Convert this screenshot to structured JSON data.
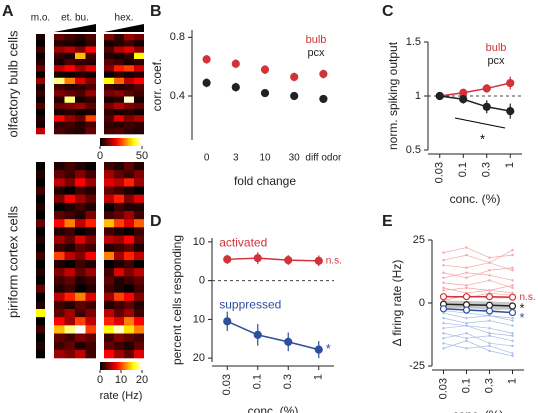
{
  "chart_data": [
    {
      "type": "heatmap",
      "panel": "A",
      "ylabel": "olfactory bulb cells",
      "ylabel_color": "#d0343a",
      "column_groups": [
        "m.o.",
        "et. bu.",
        "hex."
      ],
      "clim": [
        0,
        50
      ],
      "colorbar_ticks": [
        0,
        50
      ],
      "rows": [
        [
          2,
          8,
          5,
          3,
          6,
          10,
          4,
          12,
          9
        ],
        [
          0,
          3,
          2,
          1,
          4,
          2,
          3,
          5,
          2
        ],
        [
          5,
          12,
          15,
          10,
          20,
          6,
          14,
          18,
          11
        ],
        [
          1,
          4,
          2,
          35,
          5,
          3,
          2,
          4,
          40
        ],
        [
          3,
          2,
          6,
          4,
          3,
          7,
          5,
          2,
          4
        ],
        [
          8,
          15,
          20,
          12,
          18,
          10,
          22,
          25,
          16
        ],
        [
          0,
          2,
          1,
          3,
          2,
          1,
          4,
          2,
          3
        ],
        [
          12,
          45,
          30,
          18,
          10,
          40,
          28,
          15,
          20
        ],
        [
          2,
          5,
          3,
          4,
          6,
          5,
          3,
          4,
          7
        ],
        [
          4,
          10,
          8,
          6,
          12,
          9,
          11,
          7,
          5
        ],
        [
          1,
          3,
          45,
          2,
          4,
          2,
          3,
          48,
          2
        ],
        [
          6,
          8,
          10,
          12,
          7,
          9,
          14,
          10,
          8
        ],
        [
          0,
          2,
          3,
          1,
          2,
          4,
          2,
          3,
          1
        ],
        [
          3,
          20,
          12,
          8,
          25,
          6,
          18,
          10,
          14
        ],
        [
          2,
          4,
          5,
          3,
          6,
          4,
          3,
          5,
          4
        ],
        [
          15,
          6,
          4,
          3,
          8,
          5,
          6,
          4,
          3
        ]
      ]
    },
    {
      "type": "heatmap",
      "ylabel": "piriform cortex cells",
      "ylabel_color": "#000000",
      "clim": [
        0,
        20
      ],
      "colorbar_ticks": [
        0,
        10,
        20
      ],
      "colorbar_label": "rate (Hz)",
      "rows": [
        [
          0,
          1,
          2,
          1,
          0,
          2,
          1,
          3,
          1
        ],
        [
          1,
          3,
          2,
          4,
          2,
          5,
          3,
          2,
          4
        ],
        [
          0,
          6,
          4,
          8,
          5,
          7,
          6,
          9,
          5
        ],
        [
          2,
          1,
          0,
          2,
          1,
          3,
          2,
          1,
          0
        ],
        [
          0,
          4,
          8,
          5,
          3,
          6,
          9,
          4,
          7
        ],
        [
          1,
          0,
          1,
          2,
          1,
          0,
          2,
          1,
          1
        ],
        [
          0,
          3,
          2,
          1,
          4,
          2,
          3,
          5,
          2
        ],
        [
          3,
          8,
          12,
          6,
          9,
          14,
          10,
          7,
          11
        ],
        [
          0,
          1,
          2,
          0,
          1,
          2,
          1,
          0,
          2
        ],
        [
          1,
          5,
          3,
          7,
          4,
          6,
          5,
          8,
          3
        ],
        [
          0,
          2,
          1,
          3,
          2,
          1,
          2,
          3,
          1
        ],
        [
          2,
          10,
          6,
          4,
          8,
          12,
          5,
          9,
          6
        ],
        [
          0,
          1,
          0,
          2,
          1,
          0,
          1,
          2,
          0
        ],
        [
          1,
          4,
          6,
          3,
          5,
          2,
          7,
          4,
          6
        ],
        [
          0,
          2,
          3,
          1,
          2,
          3,
          1,
          2,
          3
        ],
        [
          3,
          1,
          2,
          0,
          1,
          2,
          1,
          0,
          2
        ],
        [
          0,
          6,
          9,
          12,
          7,
          5,
          10,
          8,
          4
        ],
        [
          1,
          2,
          1,
          3,
          2,
          1,
          2,
          3,
          1
        ],
        [
          16,
          3,
          5,
          2,
          4,
          6,
          3,
          5,
          2
        ],
        [
          0,
          8,
          5,
          10,
          6,
          9,
          7,
          12,
          8
        ],
        [
          2,
          14,
          18,
          20,
          10,
          16,
          19,
          15,
          12
        ],
        [
          0,
          3,
          2,
          4,
          3,
          2,
          4,
          3,
          2
        ],
        [
          1,
          2,
          3,
          1,
          2,
          3,
          2,
          1,
          3
        ],
        [
          0,
          5,
          4,
          6,
          2,
          8,
          5,
          3,
          7
        ]
      ]
    },
    {
      "type": "scatter",
      "panel": "B",
      "ylabel": "corr. coef.",
      "xlabel": "fold change",
      "categories": [
        "0",
        "3",
        "10",
        "30",
        "diff odor"
      ],
      "ylim": [
        0.1,
        0.85
      ],
      "yticks": [
        0.4,
        0.8
      ],
      "legend": "upper right",
      "lines": false,
      "series": [
        {
          "name": "bulb",
          "color": "#d0343a",
          "values": [
            0.65,
            0.62,
            0.58,
            0.53,
            0.55
          ],
          "errors": [
            0.03,
            0.03,
            0.03,
            0.03,
            0.03
          ]
        },
        {
          "name": "pcx",
          "color": "#222222",
          "values": [
            0.49,
            0.46,
            0.42,
            0.4,
            0.38
          ],
          "errors": [
            0.03,
            0.03,
            0.02,
            0.02,
            0.02
          ]
        }
      ]
    },
    {
      "type": "line",
      "panel": "C",
      "ylabel": "norm. spiking output",
      "xlabel": "conc. (%)",
      "categories": [
        "0.03",
        "0.1",
        "0.3",
        "1"
      ],
      "ylim": [
        0.5,
        1.5
      ],
      "yticks": [
        0.5,
        1,
        1.5
      ],
      "refline": 1,
      "legend": "upper right",
      "lines": true,
      "annotations": [
        {
          "text": "*",
          "color": "#000000"
        }
      ],
      "series": [
        {
          "name": "bulb",
          "color": "#d0343a",
          "values": [
            1,
            1.03,
            1.07,
            1.12
          ],
          "errors": [
            0,
            0.03,
            0.04,
            0.06
          ]
        },
        {
          "name": "pcx",
          "color": "#222222",
          "values": [
            1,
            0.97,
            0.9,
            0.86
          ],
          "errors": [
            0,
            0.04,
            0.06,
            0.07
          ]
        }
      ]
    },
    {
      "type": "line",
      "panel": "D",
      "ylabel": "percent cells responding",
      "xlabel": "conc. (%)",
      "categories": [
        "0.03",
        "0.1",
        "0.3",
        "1"
      ],
      "ylim": [
        -21,
        11
      ],
      "yticks": [
        10,
        0,
        {
          "value": -10,
          "label": "10"
        },
        {
          "value": -20,
          "label": "20"
        }
      ],
      "refline": 0,
      "legend": "inline",
      "lines": true,
      "annotations": [
        {
          "text": "n.s.",
          "color": "#d0343a"
        },
        {
          "text": "*",
          "color": "#2e4e9e"
        }
      ],
      "series": [
        {
          "name": "activated",
          "color": "#d0343a",
          "values": [
            5.5,
            5.8,
            5.3,
            5.1
          ],
          "errors": [
            1.2,
            1.5,
            1.3,
            1.4
          ]
        },
        {
          "name": "suppressed",
          "color": "#2e4e9e",
          "values": [
            -10.5,
            -14,
            -15.8,
            -17.8
          ],
          "errors": [
            2.5,
            2.8,
            2.4,
            2.2
          ]
        }
      ]
    },
    {
      "type": "line",
      "panel": "E",
      "ylabel": "Δ firing rate (Hz)",
      "xlabel": "conc. (%)",
      "categories": [
        "0.03",
        "0.1",
        "0.3",
        "1"
      ],
      "ylim": [
        -25,
        25
      ],
      "yticks": [
        -25,
        0,
        25
      ],
      "lines": true,
      "open_markers": true,
      "band": true,
      "annotations": [
        {
          "text": "n.s.",
          "color": "#d0343a"
        },
        {
          "text": "*",
          "color": "#222222"
        },
        {
          "text": "*",
          "color": "#2e4e9e"
        }
      ],
      "traces": [
        {
          "color": "#f4a6a8",
          "values": [
            5,
            6,
            5,
            4
          ]
        },
        {
          "color": "#f4a6a8",
          "values": [
            10,
            12,
            11,
            9
          ]
        },
        {
          "color": "#f4a6a8",
          "values": [
            15,
            14,
            16,
            13
          ]
        },
        {
          "color": "#f4a6a8",
          "values": [
            20,
            22,
            18,
            19
          ]
        },
        {
          "color": "#f4a6a8",
          "values": [
            3,
            2,
            4,
            3
          ]
        },
        {
          "color": "#f4a6a8",
          "values": [
            8,
            7,
            9,
            6
          ]
        },
        {
          "color": "#f4a6a8",
          "values": [
            12,
            10,
            13,
            14
          ]
        },
        {
          "color": "#f4a6a8",
          "values": [
            1,
            3,
            2,
            2
          ]
        },
        {
          "color": "#f4a6a8",
          "values": [
            17,
            19,
            16,
            21
          ]
        },
        {
          "color": "#f4a6a8",
          "values": [
            6,
            4,
            5,
            7
          ]
        },
        {
          "color": "#a9bde6",
          "values": [
            -3,
            -4,
            -5,
            -6
          ]
        },
        {
          "color": "#a9bde6",
          "values": [
            -8,
            -9,
            -10,
            -12
          ]
        },
        {
          "color": "#a9bde6",
          "values": [
            -12,
            -14,
            -13,
            -15
          ]
        },
        {
          "color": "#a9bde6",
          "values": [
            -16,
            -18,
            -17,
            -20
          ]
        },
        {
          "color": "#a9bde6",
          "values": [
            -2,
            -1,
            -3,
            -2
          ]
        },
        {
          "color": "#a9bde6",
          "values": [
            -6,
            -8,
            -7,
            -9
          ]
        },
        {
          "color": "#a9bde6",
          "values": [
            -10,
            -9,
            -12,
            -13
          ]
        },
        {
          "color": "#a9bde6",
          "values": [
            -18,
            -15,
            -19,
            -21
          ]
        },
        {
          "color": "#a9bde6",
          "values": [
            -4,
            -6,
            -5,
            -7
          ]
        },
        {
          "color": "#a9bde6",
          "values": [
            -14,
            -12,
            -16,
            -17
          ]
        }
      ],
      "series": [
        {
          "color": "#d0343a",
          "values": [
            2.5,
            2.5,
            2.5,
            2.3
          ]
        },
        {
          "color": "#222222",
          "values": [
            -0.5,
            -0.7,
            -0.9,
            -1.2
          ],
          "errors": [
            1.5,
            1.5,
            1.5,
            1.5
          ]
        },
        {
          "color": "#2e4e9e",
          "values": [
            -2.3,
            -2.8,
            -3.2,
            -3.8
          ]
        }
      ]
    }
  ]
}
